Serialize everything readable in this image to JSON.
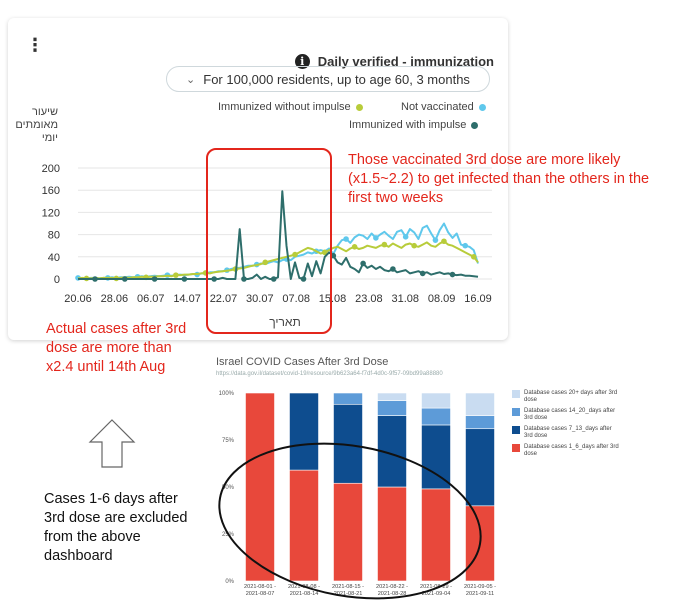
{
  "dashboard": {
    "title": "Daily verified - immunization",
    "info_icon": "info-icon",
    "menu_icon": "kebab-menu-icon",
    "filter_label": "For 100,000 residents, up to age 60, 3 months",
    "y_axis_label": "שיעור מאומתים יומי",
    "x_axis_label": "תאריך",
    "legend": [
      {
        "label": "Immunized without impulse",
        "color": "#b8cc3a"
      },
      {
        "label": "Not vaccinated",
        "color": "#5fc8ec"
      },
      {
        "label": "Immunized with impulse",
        "color": "#2e6e6b"
      }
    ]
  },
  "annotations": {
    "top_right": "Those vaccinated 3rd dose are more likely (x1.5~2.2) to get infected than the others in the first two weeks",
    "left": "Actual cases after 3rd dose are more than x2.4 until 14th Aug",
    "bottom_left": "Cases 1-6 days after 3rd dose are excluded from the above dashboard",
    "arrow_icon": "up-arrow-icon"
  },
  "chart_data": [
    {
      "type": "line",
      "title": "Daily verified - immunization",
      "xlabel": "תאריך",
      "ylabel": "שיעור מאומתים יומי",
      "ylim": [
        0,
        200
      ],
      "yticks": [
        0,
        40,
        80,
        120,
        160,
        200
      ],
      "xticks": [
        "20.06",
        "28.06",
        "06.07",
        "14.07",
        "22.07",
        "30.07",
        "07.08",
        "15.08",
        "23.08",
        "31.08",
        "08.09",
        "16.09"
      ],
      "x_start": "20.06",
      "series": [
        {
          "name": "Not vaccinated",
          "color": "#5fc8ec",
          "values": [
            2,
            1,
            1,
            2,
            2,
            1,
            2,
            2,
            3,
            2,
            3,
            3,
            4,
            3,
            4,
            5,
            4,
            5,
            6,
            5,
            6,
            7,
            6,
            7,
            8,
            7,
            8,
            9,
            8,
            10,
            10,
            12,
            12,
            14,
            14,
            16,
            18,
            20,
            20,
            22,
            24,
            24,
            26,
            28,
            27,
            30,
            32,
            30,
            34,
            36,
            34,
            40,
            42,
            44,
            48,
            46,
            50,
            52,
            50,
            55,
            45,
            60,
            70,
            72,
            65,
            75,
            80,
            78,
            72,
            82,
            74,
            80,
            85,
            78,
            72,
            85,
            88,
            76,
            90,
            84,
            72,
            92,
            96,
            82,
            70,
            88,
            100,
            84,
            74,
            82,
            62,
            60,
            58,
            52,
            28
          ]
        },
        {
          "name": "Immunized without impulse",
          "color": "#b8cc3a",
          "values": [
            1,
            2,
            1,
            1,
            2,
            1,
            2,
            2,
            2,
            1,
            2,
            3,
            2,
            3,
            3,
            4,
            3,
            4,
            4,
            5,
            5,
            6,
            5,
            7,
            7,
            8,
            8,
            9,
            9,
            10,
            11,
            10,
            12,
            13,
            14,
            15,
            16,
            18,
            19,
            20,
            22,
            24,
            25,
            27,
            30,
            32,
            34,
            36,
            38,
            40,
            42,
            44,
            48,
            52,
            56,
            54,
            50,
            46,
            48,
            52,
            56,
            58,
            54,
            50,
            55,
            58,
            54,
            56,
            60,
            58,
            56,
            60,
            62,
            58,
            64,
            60,
            56,
            62,
            64,
            60,
            58,
            62,
            66,
            60,
            58,
            64,
            68,
            62,
            60,
            56,
            52,
            48,
            44,
            40,
            30
          ]
        },
        {
          "name": "Immunized with impulse",
          "color": "#2e6e6b",
          "values": [
            0,
            0,
            0,
            0,
            0,
            0,
            0,
            0,
            0,
            0,
            0,
            0,
            0,
            0,
            0,
            0,
            0,
            0,
            0,
            0,
            0,
            0,
            0,
            0,
            0,
            0,
            0,
            0,
            0,
            0,
            0,
            0,
            0,
            0,
            2,
            0,
            0,
            0,
            90,
            0,
            0,
            2,
            8,
            0,
            4,
            0,
            0,
            3,
            158,
            60,
            0,
            30,
            2,
            0,
            28,
            5,
            32,
            10,
            40,
            48,
            42,
            30,
            26,
            38,
            22,
            18,
            12,
            28,
            20,
            24,
            18,
            22,
            16,
            14,
            18,
            12,
            14,
            16,
            10,
            12,
            14,
            10,
            12,
            8,
            10,
            12,
            9,
            10,
            8,
            7,
            8,
            6,
            6,
            5,
            4
          ]
        }
      ]
    },
    {
      "type": "bar",
      "stacked": true,
      "title": "Israel COVID Cases After 3rd Dose",
      "source": "https://data.gov.il/dataset/covid-19/resource/9b623a64-f7df-4d0c-9f57-09bd99a88880",
      "categories": [
        "2021-08-01 - 2021-08-07",
        "2021-08-08 - 2021-08-14",
        "2021-08-15 - 2021-08-21",
        "2021-08-22 - 2021-08-28",
        "2021-08-29 - 2021-09-04",
        "2021-09-05 - 2021-09-11"
      ],
      "yticks": [
        "0%",
        "25%",
        "50%",
        "75%",
        "100%"
      ],
      "ylim": [
        0,
        100
      ],
      "legend_position": "right",
      "series": [
        {
          "name": "Database cases 1_6_days after 3rd dose",
          "color": "#e8483b",
          "values": [
            100,
            59,
            52,
            50,
            49,
            40
          ]
        },
        {
          "name": "Database cases 7_13_days after 3rd dose",
          "color": "#0e4d8f",
          "values": [
            0,
            41,
            42,
            38,
            34,
            41
          ]
        },
        {
          "name": "Database cases 14_20_days after 3rd dose",
          "color": "#5d9bd8",
          "values": [
            0,
            0,
            6,
            8,
            9,
            7
          ]
        },
        {
          "name": "Database cases 20+ days after 3rd dose",
          "color": "#c9dcf1",
          "values": [
            0,
            0,
            0,
            4,
            8,
            12
          ]
        }
      ]
    }
  ]
}
